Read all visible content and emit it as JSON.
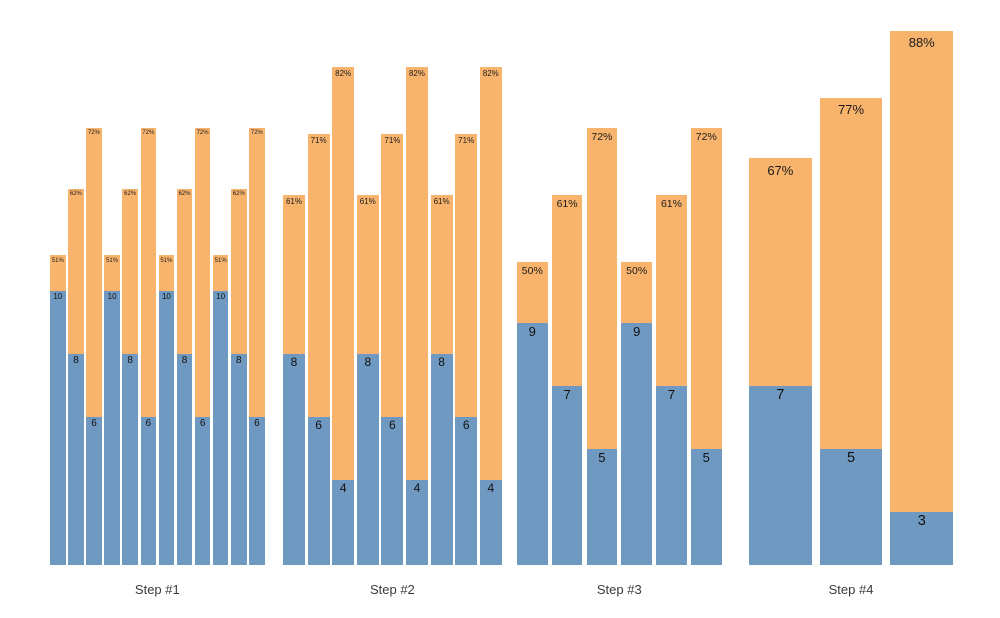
{
  "colors": {
    "bar_blue": "#6f99c0",
    "bar_orange": "#f8b46d",
    "value_text": "#111111",
    "percent_text": "#1a1a1a",
    "axis_label_text": "#3b3b3b",
    "background": "#ffffff"
  },
  "chart_data": {
    "type": "bar",
    "subtype": "grouped bars; orange full-bar height encodes percent, blue bottom overlay height encodes value",
    "title": "",
    "xlabel": "",
    "ylabel": "",
    "legend_position": "none",
    "grid": false,
    "categories": [
      "Step #1",
      "Step #2",
      "Step #3",
      "Step #4"
    ],
    "groups": [
      {
        "label": "Step #1",
        "bars": [
          {
            "value": 10,
            "percent": 51
          },
          {
            "value": 8,
            "percent": 62
          },
          {
            "value": 6,
            "percent": 72
          },
          {
            "value": 10,
            "percent": 51
          },
          {
            "value": 8,
            "percent": 62
          },
          {
            "value": 6,
            "percent": 72
          },
          {
            "value": 10,
            "percent": 51
          },
          {
            "value": 8,
            "percent": 62
          },
          {
            "value": 6,
            "percent": 72
          },
          {
            "value": 10,
            "percent": 51
          },
          {
            "value": 8,
            "percent": 62
          },
          {
            "value": 6,
            "percent": 72
          }
        ]
      },
      {
        "label": "Step #2",
        "bars": [
          {
            "value": 8,
            "percent": 61
          },
          {
            "value": 6,
            "percent": 71
          },
          {
            "value": 4,
            "percent": 82
          },
          {
            "value": 8,
            "percent": 61
          },
          {
            "value": 6,
            "percent": 71
          },
          {
            "value": 4,
            "percent": 82
          },
          {
            "value": 8,
            "percent": 61
          },
          {
            "value": 6,
            "percent": 71
          },
          {
            "value": 4,
            "percent": 82
          }
        ]
      },
      {
        "label": "Step #3",
        "bars": [
          {
            "value": 9,
            "percent": 50
          },
          {
            "value": 7,
            "percent": 61
          },
          {
            "value": 5,
            "percent": 72
          },
          {
            "value": 9,
            "percent": 50
          },
          {
            "value": 7,
            "percent": 61
          },
          {
            "value": 5,
            "percent": 72
          }
        ]
      },
      {
        "label": "Step #4",
        "bars": [
          {
            "value": 7,
            "percent": 67
          },
          {
            "value": 5,
            "percent": 77
          },
          {
            "value": 3,
            "percent": 88
          }
        ]
      }
    ]
  }
}
